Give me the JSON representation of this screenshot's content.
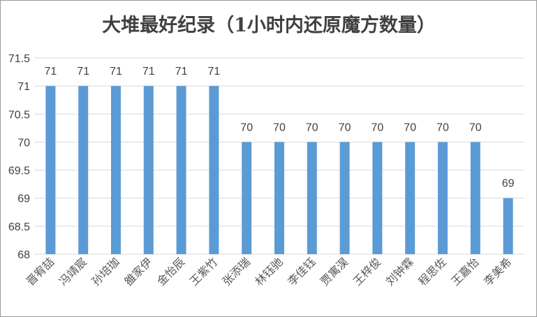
{
  "chart_data": {
    "type": "bar",
    "title": "大堆最好纪录（1小时内还原魔方数量）",
    "xlabel": "",
    "ylabel": "",
    "categories": [
      "晋宥喆",
      "冯靖宸",
      "孙培珈",
      "雒家伊",
      "金怡辰",
      "王紫竹",
      "张添瑞",
      "林钰驰",
      "李佳钰",
      "贾寓淏",
      "王梓俊",
      "刘钟霖",
      "程思佐",
      "王嘉怡",
      "李美希"
    ],
    "values": [
      71,
      71,
      71,
      71,
      71,
      71,
      70,
      70,
      70,
      70,
      70,
      70,
      70,
      70,
      69
    ],
    "ylim": [
      68,
      71.5
    ],
    "yticks": [
      "68",
      "68.5",
      "69",
      "69.5",
      "70",
      "70.5",
      "71",
      "71.5"
    ],
    "grid": true,
    "data_labels": true,
    "bar_color": "#5b9bd5"
  }
}
